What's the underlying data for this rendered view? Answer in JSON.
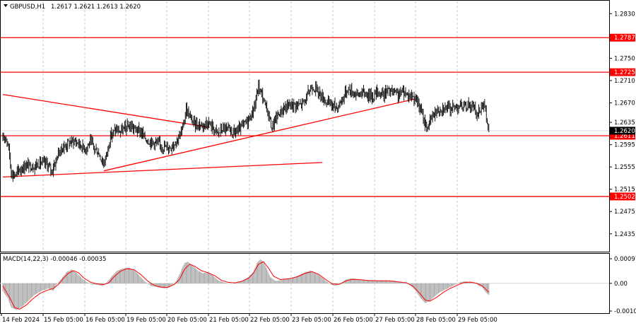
{
  "header": {
    "symbol": "GBPUSD,H1",
    "ohlc": "1.2617 1.2621 1.2613 1.2620"
  },
  "macd": {
    "title": "MACD(14,22,3) -0.00046 -0.00035",
    "ticks": [
      "0.00097",
      "0.00",
      "-0.00109"
    ]
  },
  "colors": {
    "candles": "#000000",
    "levels": "#ff0000",
    "signal": "#ff0000",
    "histogram": "#a6a6a6",
    "grid": "#c8c8c8"
  },
  "chart_data": {
    "type": "candlestick",
    "symbol": "GBPUSD",
    "timeframe": "H1",
    "price_ticks": [
      "1.2830",
      "1.2750",
      "1.2710",
      "1.2670",
      "1.2635",
      "1.2595",
      "1.2555",
      "1.2515",
      "1.2475",
      "1.2435"
    ],
    "x_ticks": [
      "14 Feb 2024",
      "15 Feb 05:00",
      "16 Feb 05:00",
      "19 Feb 05:00",
      "20 Feb 05:00",
      "21 Feb 05:00",
      "22 Feb 05:00",
      "23 Feb 05:00",
      "26 Feb 05:00",
      "27 Feb 05:00",
      "28 Feb 05:00",
      "29 Feb 05:00"
    ],
    "y_range": [
      1.2403,
      1.2852
    ],
    "horizontal_levels": [
      {
        "value": 1.2787,
        "label": "1.2787"
      },
      {
        "value": 1.2725,
        "label": "1.2725"
      },
      {
        "value": 1.2611,
        "label": "1.2611"
      },
      {
        "value": 1.2502,
        "label": "1.2502"
      }
    ],
    "current_price": {
      "value": 1.262,
      "label": "1.2620"
    },
    "trendlines": [
      {
        "name": "descending",
        "from": {
          "bar": 0,
          "price": 1.2685
        },
        "to": {
          "bar": 246,
          "price": 1.2626
        }
      },
      {
        "name": "ascending",
        "from": {
          "bar": 120,
          "price": 1.2548
        },
        "to": {
          "bar": 490,
          "price": 1.2677
        }
      },
      {
        "name": "lower-support",
        "from": {
          "bar": 0,
          "price": 1.2537
        },
        "to": {
          "bar": 380,
          "price": 1.2563
        }
      }
    ],
    "price_path": [
      [
        0,
        1.2602
      ],
      [
        3,
        1.2612
      ],
      [
        7,
        1.259
      ],
      [
        10,
        1.2545
      ],
      [
        14,
        1.254
      ],
      [
        20,
        1.255
      ],
      [
        28,
        1.2558
      ],
      [
        36,
        1.2556
      ],
      [
        44,
        1.2562
      ],
      [
        52,
        1.2561
      ],
      [
        58,
        1.2548
      ],
      [
        62,
        1.2562
      ],
      [
        66,
        1.258
      ],
      [
        72,
        1.259
      ],
      [
        78,
        1.2598
      ],
      [
        84,
        1.2602
      ],
      [
        90,
        1.2598
      ],
      [
        94,
        1.2592
      ],
      [
        98,
        1.2588
      ],
      [
        104,
        1.26
      ],
      [
        108,
        1.259
      ],
      [
        114,
        1.258
      ],
      [
        120,
        1.256
      ],
      [
        124,
        1.2582
      ],
      [
        128,
        1.261
      ],
      [
        134,
        1.2622
      ],
      [
        140,
        1.2618
      ],
      [
        146,
        1.2625
      ],
      [
        152,
        1.2628
      ],
      [
        158,
        1.2622
      ],
      [
        164,
        1.2618
      ],
      [
        170,
        1.2605
      ],
      [
        176,
        1.26
      ],
      [
        182,
        1.2598
      ],
      [
        190,
        1.2592
      ],
      [
        198,
        1.259
      ],
      [
        204,
        1.2598
      ],
      [
        210,
        1.261
      ],
      [
        214,
        1.2625
      ],
      [
        218,
        1.266
      ],
      [
        222,
        1.2645
      ],
      [
        228,
        1.2632
      ],
      [
        236,
        1.263
      ],
      [
        244,
        1.2635
      ],
      [
        250,
        1.2625
      ],
      [
        256,
        1.2615
      ],
      [
        262,
        1.2625
      ],
      [
        268,
        1.262
      ],
      [
        274,
        1.2616
      ],
      [
        280,
        1.262
      ],
      [
        286,
        1.263
      ],
      [
        292,
        1.264
      ],
      [
        296,
        1.265
      ],
      [
        300,
        1.2668
      ],
      [
        304,
        1.27
      ],
      [
        308,
        1.2685
      ],
      [
        312,
        1.2665
      ],
      [
        316,
        1.265
      ],
      [
        320,
        1.2625
      ],
      [
        324,
        1.264
      ],
      [
        328,
        1.265
      ],
      [
        336,
        1.2662
      ],
      [
        344,
        1.2668
      ],
      [
        352,
        1.2665
      ],
      [
        360,
        1.2675
      ],
      [
        364,
        1.269
      ],
      [
        368,
        1.27
      ],
      [
        374,
        1.2692
      ],
      [
        380,
        1.268
      ],
      [
        386,
        1.267
      ],
      [
        392,
        1.2666
      ],
      [
        398,
        1.2662
      ],
      [
        404,
        1.2678
      ],
      [
        410,
        1.2695
      ],
      [
        416,
        1.269
      ],
      [
        422,
        1.2685
      ],
      [
        428,
        1.2688
      ],
      [
        434,
        1.2685
      ],
      [
        440,
        1.2682
      ],
      [
        446,
        1.269
      ],
      [
        452,
        1.2685
      ],
      [
        458,
        1.2692
      ],
      [
        464,
        1.2688
      ],
      [
        470,
        1.2684
      ],
      [
        476,
        1.269
      ],
      [
        482,
        1.2685
      ],
      [
        490,
        1.268
      ],
      [
        496,
        1.266
      ],
      [
        500,
        1.2642
      ],
      [
        504,
        1.2625
      ],
      [
        508,
        1.2635
      ],
      [
        512,
        1.265
      ],
      [
        518,
        1.2658
      ],
      [
        524,
        1.2662
      ],
      [
        530,
        1.266
      ],
      [
        536,
        1.2662
      ],
      [
        542,
        1.2665
      ],
      [
        548,
        1.2662
      ],
      [
        554,
        1.2668
      ],
      [
        560,
        1.266
      ],
      [
        564,
        1.2648
      ],
      [
        568,
        1.266
      ],
      [
        572,
        1.2672
      ],
      [
        575,
        1.264
      ],
      [
        578,
        1.262
      ]
    ],
    "macd_histogram_path": [
      [
        0,
        -0.0003
      ],
      [
        6,
        -0.0006
      ],
      [
        10,
        -0.00095
      ],
      [
        16,
        -0.00105
      ],
      [
        22,
        -0.00095
      ],
      [
        30,
        -0.0007
      ],
      [
        38,
        -0.00045
      ],
      [
        46,
        -0.0003
      ],
      [
        54,
        -0.0002
      ],
      [
        60,
        -0.0003
      ],
      [
        64,
        -5e-05
      ],
      [
        70,
        0.0002
      ],
      [
        76,
        0.00045
      ],
      [
        82,
        0.00055
      ],
      [
        88,
        0.0004
      ],
      [
        94,
        0.0002
      ],
      [
        100,
        5e-05
      ],
      [
        106,
        -5e-05
      ],
      [
        112,
        -5e-05
      ],
      [
        118,
        -0.0001
      ],
      [
        124,
        5e-05
      ],
      [
        130,
        0.0003
      ],
      [
        136,
        0.0005
      ],
      [
        142,
        0.00058
      ],
      [
        150,
        0.00062
      ],
      [
        156,
        0.00052
      ],
      [
        162,
        0.00032
      ],
      [
        168,
        0.0001
      ],
      [
        176,
        -0.0001
      ],
      [
        184,
        -0.00015
      ],
      [
        192,
        -0.0002
      ],
      [
        198,
        -0.00015
      ],
      [
        204,
        0.0
      ],
      [
        208,
        0.0002
      ],
      [
        212,
        0.0005
      ],
      [
        216,
        0.0008
      ],
      [
        220,
        0.00085
      ],
      [
        226,
        0.0007
      ],
      [
        232,
        0.0005
      ],
      [
        238,
        0.0004
      ],
      [
        244,
        0.00045
      ],
      [
        250,
        0.0003
      ],
      [
        256,
        0.00012
      ],
      [
        262,
        5e-05
      ],
      [
        268,
        0.0
      ],
      [
        274,
        0.0
      ],
      [
        280,
        5e-05
      ],
      [
        286,
        0.00012
      ],
      [
        292,
        0.00025
      ],
      [
        298,
        0.00045
      ],
      [
        302,
        0.0008
      ],
      [
        306,
        0.00095
      ],
      [
        310,
        0.00085
      ],
      [
        314,
        0.00055
      ],
      [
        318,
        0.00025
      ],
      [
        324,
        0.0001
      ],
      [
        330,
        0.00012
      ],
      [
        338,
        0.00018
      ],
      [
        346,
        0.00022
      ],
      [
        354,
        0.00035
      ],
      [
        360,
        0.00045
      ],
      [
        366,
        0.0005
      ],
      [
        372,
        0.0004
      ],
      [
        378,
        0.00028
      ],
      [
        384,
        0.0001
      ],
      [
        390,
        -5e-05
      ],
      [
        396,
        -0.0001
      ],
      [
        402,
        0.0
      ],
      [
        408,
        0.00015
      ],
      [
        414,
        0.0002
      ],
      [
        420,
        0.00018
      ],
      [
        426,
        0.00015
      ],
      [
        432,
        0.00012
      ],
      [
        440,
        0.0001
      ],
      [
        448,
        0.0001
      ],
      [
        456,
        0.00012
      ],
      [
        462,
        8e-05
      ],
      [
        470,
        5e-05
      ],
      [
        478,
        3e-05
      ],
      [
        484,
        -5e-05
      ],
      [
        490,
        -0.00025
      ],
      [
        496,
        -0.00055
      ],
      [
        502,
        -0.00078
      ],
      [
        508,
        -0.0007
      ],
      [
        514,
        -0.0005
      ],
      [
        520,
        -0.00035
      ],
      [
        526,
        -0.00025
      ],
      [
        532,
        -0.00015
      ],
      [
        538,
        -5e-05
      ],
      [
        544,
        5e-05
      ],
      [
        550,
        8e-05
      ],
      [
        556,
        5e-05
      ],
      [
        562,
        0.0
      ],
      [
        566,
        -0.0001
      ],
      [
        570,
        -0.00015
      ],
      [
        574,
        -0.00035
      ],
      [
        578,
        -0.00046
      ]
    ],
    "macd_signal_path": [
      [
        0,
        -0.0001
      ],
      [
        8,
        -0.00055
      ],
      [
        14,
        -0.00095
      ],
      [
        20,
        -0.00102
      ],
      [
        28,
        -0.00085
      ],
      [
        36,
        -0.0006
      ],
      [
        44,
        -0.0004
      ],
      [
        52,
        -0.00028
      ],
      [
        60,
        -0.0002
      ],
      [
        66,
        -5e-05
      ],
      [
        72,
        0.0002
      ],
      [
        78,
        0.0004
      ],
      [
        84,
        0.0005
      ],
      [
        90,
        0.00042
      ],
      [
        96,
        0.00022
      ],
      [
        104,
        5e-05
      ],
      [
        112,
        -2e-05
      ],
      [
        120,
        -5e-05
      ],
      [
        126,
        2e-05
      ],
      [
        132,
        0.00025
      ],
      [
        140,
        0.00048
      ],
      [
        148,
        0.00058
      ],
      [
        156,
        0.00054
      ],
      [
        164,
        0.00035
      ],
      [
        172,
        0.0001
      ],
      [
        180,
        -8e-05
      ],
      [
        188,
        -0.00015
      ],
      [
        196,
        -0.00016
      ],
      [
        204,
        -4e-05
      ],
      [
        210,
        0.00015
      ],
      [
        216,
        0.00055
      ],
      [
        222,
        0.00075
      ],
      [
        228,
        0.00068
      ],
      [
        236,
        0.0005
      ],
      [
        244,
        0.00042
      ],
      [
        252,
        0.0003
      ],
      [
        260,
        0.00012
      ],
      [
        268,
        4e-05
      ],
      [
        276,
        2e-05
      ],
      [
        284,
        8e-05
      ],
      [
        292,
        0.0002
      ],
      [
        298,
        0.0004
      ],
      [
        304,
        0.00075
      ],
      [
        310,
        0.00085
      ],
      [
        316,
        0.0006
      ],
      [
        322,
        0.00028
      ],
      [
        330,
        0.00015
      ],
      [
        340,
        0.00018
      ],
      [
        350,
        0.00026
      ],
      [
        360,
        0.0004
      ],
      [
        368,
        0.00046
      ],
      [
        376,
        0.00035
      ],
      [
        384,
        0.00015
      ],
      [
        392,
        -2e-05
      ],
      [
        400,
        -4e-05
      ],
      [
        408,
        0.0001
      ],
      [
        416,
        0.00016
      ],
      [
        426,
        0.00014
      ],
      [
        436,
        0.00011
      ],
      [
        448,
        0.0001
      ],
      [
        460,
        0.0001
      ],
      [
        470,
        6e-05
      ],
      [
        480,
        2e-05
      ],
      [
        488,
        -0.00012
      ],
      [
        496,
        -0.0004
      ],
      [
        502,
        -0.00065
      ],
      [
        508,
        -0.0007
      ],
      [
        516,
        -0.00055
      ],
      [
        524,
        -0.00035
      ],
      [
        532,
        -0.0002
      ],
      [
        540,
        -8e-05
      ],
      [
        548,
        3e-05
      ],
      [
        556,
        5e-05
      ],
      [
        564,
        0.0
      ],
      [
        570,
        -0.0001
      ],
      [
        574,
        -0.00022
      ],
      [
        578,
        -0.00035
      ]
    ]
  }
}
